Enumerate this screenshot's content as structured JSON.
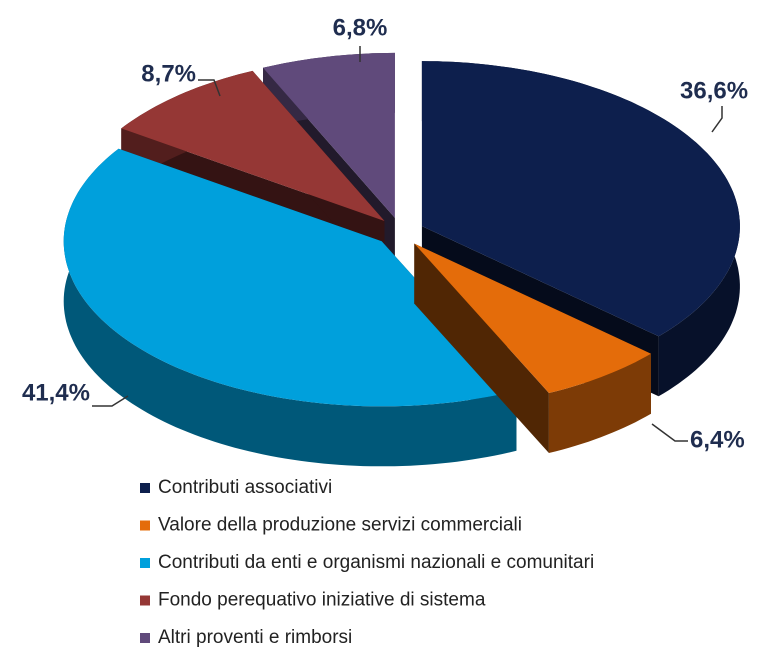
{
  "chart_data": {
    "type": "pie",
    "categories": [
      "Contributi associativi",
      "Valore della produzione servizi commerciali",
      "Contributi da enti e organismi nazionali e comunitari",
      "Fondo perequativo iniziative di sistema",
      "Altri proventi e rimborsi"
    ],
    "values": [
      36.6,
      6.4,
      41.4,
      8.7,
      6.8
    ],
    "value_labels": [
      "36,6%",
      "6,4%",
      "41,4%",
      "8,7%",
      "6,8%"
    ],
    "colors": [
      "#0d1f4d",
      "#e46c0a",
      "#00a0dc",
      "#953735",
      "#604a7b"
    ],
    "legend": "bottom"
  }
}
